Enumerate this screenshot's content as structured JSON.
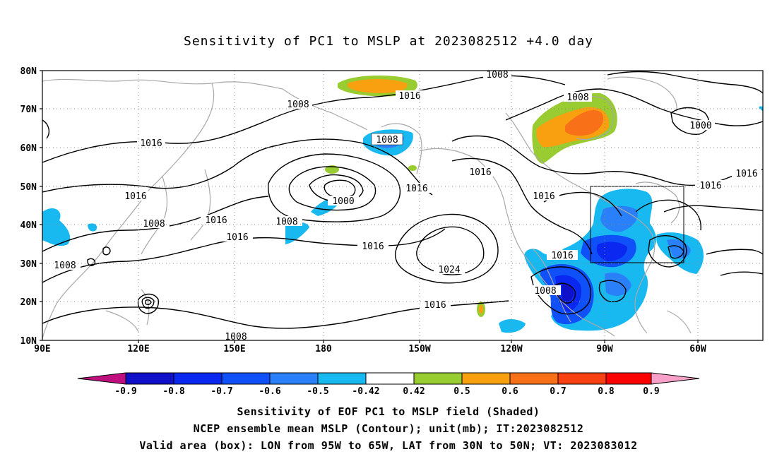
{
  "title": "Sensitivity of PC1 to MSLP at 2023082512 +4.0 day",
  "axes": {
    "lat_labels": [
      "80N",
      "70N",
      "60N",
      "50N",
      "40N",
      "30N",
      "20N",
      "10N"
    ],
    "lon_labels": [
      "90E",
      "120E",
      "150E",
      "180",
      "150W",
      "120W",
      "90W",
      "60W"
    ]
  },
  "contour_labels": [
    {
      "text": "1008"
    },
    {
      "text": "1008"
    },
    {
      "text": "1016"
    },
    {
      "text": "1008"
    },
    {
      "text": "1000"
    },
    {
      "text": "1016"
    },
    {
      "text": "1008"
    },
    {
      "text": "1016"
    },
    {
      "text": "1016"
    },
    {
      "text": "1000"
    },
    {
      "text": "1016"
    },
    {
      "text": "1008"
    },
    {
      "text": "1016"
    },
    {
      "text": "1016"
    },
    {
      "text": "1008"
    },
    {
      "text": "1008"
    },
    {
      "text": "1016"
    },
    {
      "text": "1024"
    },
    {
      "text": "1016"
    },
    {
      "text": "1008"
    },
    {
      "text": "1016"
    },
    {
      "text": "1008"
    }
  ],
  "colorbar": {
    "tick_labels": [
      "-0.9",
      "-0.8",
      "-0.7",
      "-0.6",
      "-0.5",
      "-0.42",
      "0.42",
      "0.5",
      "0.6",
      "0.7",
      "0.8",
      "0.9"
    ],
    "colors": [
      "#c01080",
      "#1010c8",
      "#0a28f0",
      "#1050f8",
      "#2a80f8",
      "#18b8f0",
      "#ffffff",
      "#98cc30",
      "#f8a010",
      "#f87018",
      "#f84010",
      "#ff0000",
      "#f8a0c8"
    ]
  },
  "box": {
    "lon_from": "95W",
    "lon_to": "65W",
    "lat_from": "30N",
    "lat_to": "50N"
  },
  "footer": {
    "line1": "Sensitivity of EOF PC1 to MSLP field (Shaded)",
    "line2": "NCEP ensemble mean MSLP (Contour); unit(mb); IT:2023082512",
    "line3": "Valid area (box): LON from 95W to 65W, LAT from 30N to 50N; VT: 2023083012"
  }
}
